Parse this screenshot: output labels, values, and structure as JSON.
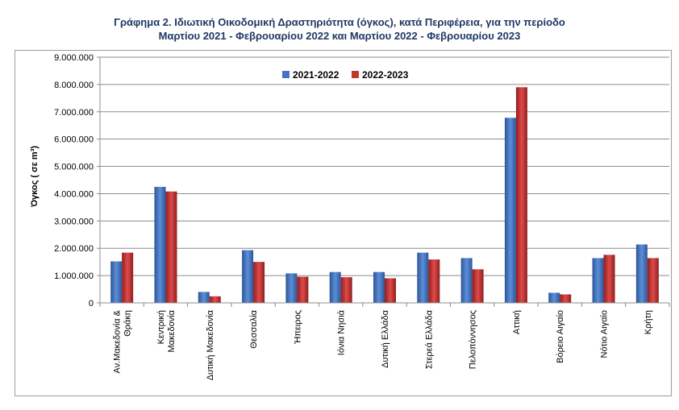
{
  "title": {
    "line1": "Γράφημα 2.  Ιδιωτική Οικοδομική Δραστηριότητα (όγκος), κατά Περιφέρεια, για την περίοδο",
    "line2": "Μαρτίου 2021 - Φεβρουαρίου 2022 και Μαρτίου 2022 - Φεβρουαρίου 2023"
  },
  "colors": {
    "series1": "#4472c4",
    "series2": "#c0392b",
    "grid": "#8c8c8c"
  },
  "chart_data": {
    "type": "bar",
    "ylabel": "Όγκος ( σε  m³)",
    "ylim": [
      0,
      9000000
    ],
    "yticks": [
      {
        "v": 0,
        "label": "0"
      },
      {
        "v": 1000000,
        "label": "1.000.000"
      },
      {
        "v": 2000000,
        "label": "2.000.000"
      },
      {
        "v": 3000000,
        "label": "3.000.000"
      },
      {
        "v": 4000000,
        "label": "4.000.000"
      },
      {
        "v": 5000000,
        "label": "5.000.000"
      },
      {
        "v": 6000000,
        "label": "6.000.000"
      },
      {
        "v": 7000000,
        "label": "7.000.000"
      },
      {
        "v": 8000000,
        "label": "8.000.000"
      },
      {
        "v": 9000000,
        "label": "9.000.000"
      }
    ],
    "grid": true,
    "legend_position": "top-center",
    "categories": [
      [
        "Αν.Μακεδονία &",
        "Θράκη"
      ],
      [
        "Κεντρική",
        "Μακεδονία"
      ],
      [
        "Δυτική Μακεδονία"
      ],
      [
        "Θεσσαλία"
      ],
      [
        "Ήπειρος"
      ],
      [
        "Ιόνια Νησιά"
      ],
      [
        "Δυτική Ελλάδα"
      ],
      [
        "Στερεά Ελλάδα"
      ],
      [
        "Πελοπόννησος"
      ],
      [
        "Αττική"
      ],
      [
        "Βόρειο Αιγαίο"
      ],
      [
        "Νότιο Αιγαίο"
      ],
      [
        "Κρήτη"
      ]
    ],
    "series": [
      {
        "name": "2021-2022",
        "values": [
          1520000,
          4250000,
          400000,
          1930000,
          1080000,
          1130000,
          1130000,
          1840000,
          1640000,
          6780000,
          370000,
          1640000,
          2140000
        ]
      },
      {
        "name": "2022-2023",
        "values": [
          1840000,
          4080000,
          240000,
          1500000,
          960000,
          940000,
          900000,
          1590000,
          1230000,
          7900000,
          310000,
          1760000,
          1640000
        ]
      }
    ]
  }
}
